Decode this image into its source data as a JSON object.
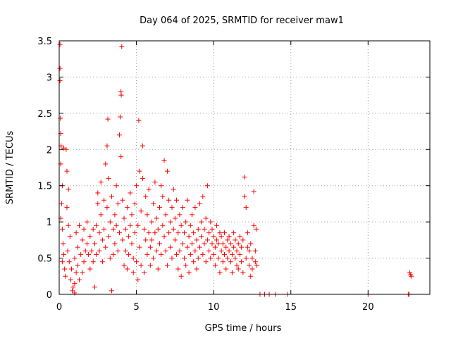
{
  "chart_data": {
    "type": "scatter",
    "title": "Day 064 of 2025, SRMTID for receiver maw1",
    "xlabel": "GPS time / hours",
    "ylabel": "SRMTID / TECUs",
    "xlim": [
      0,
      24
    ],
    "ylim": [
      0,
      3.5
    ],
    "xticks": [
      0,
      5,
      10,
      15,
      20
    ],
    "yticks": [
      0,
      0.5,
      1,
      1.5,
      2,
      2.5,
      3,
      3.5
    ],
    "xtick_labels": [
      "0",
      "5",
      "10",
      "15",
      "20"
    ],
    "ytick_labels": [
      "0",
      "0.5",
      "1",
      "1.5",
      "2",
      "2.5",
      "3",
      "3.5"
    ],
    "grid": true,
    "marker": "+",
    "color": "#ff0000",
    "series": [
      {
        "name": "SRMTID",
        "points": [
          [
            0.05,
            3.45
          ],
          [
            0.05,
            3.12
          ],
          [
            0.05,
            2.95
          ],
          [
            0.08,
            2.43
          ],
          [
            0.1,
            2.22
          ],
          [
            0.12,
            2.05
          ],
          [
            0.1,
            1.8
          ],
          [
            0.2,
            1.5
          ],
          [
            0.15,
            1.25
          ],
          [
            0.1,
            1.05
          ],
          [
            0.2,
            0.9
          ],
          [
            0.25,
            0.7
          ],
          [
            0.3,
            0.55
          ],
          [
            0.2,
            0.45
          ],
          [
            0.35,
            0.35
          ],
          [
            0.4,
            0.25
          ],
          [
            0.3,
            2.02
          ],
          [
            0.45,
            2.0
          ],
          [
            0.5,
            1.7
          ],
          [
            0.6,
            1.45
          ],
          [
            0.5,
            1.2
          ],
          [
            0.6,
            0.95
          ],
          [
            0.7,
            0.8
          ],
          [
            0.55,
            0.6
          ],
          [
            0.65,
            0.45
          ],
          [
            0.8,
            0.35
          ],
          [
            0.75,
            0.2
          ],
          [
            0.9,
            0.1
          ],
          [
            0.85,
            0.05
          ],
          [
            1.0,
            0.02
          ],
          [
            1.0,
            0.15
          ],
          [
            1.1,
            0.3
          ],
          [
            1.0,
            0.5
          ],
          [
            1.2,
            0.65
          ],
          [
            1.1,
            0.85
          ],
          [
            1.3,
            0.95
          ],
          [
            1.2,
            0.4
          ],
          [
            1.4,
            0.55
          ],
          [
            1.3,
            0.2
          ],
          [
            1.5,
            0.75
          ],
          [
            1.5,
            0.3
          ],
          [
            1.6,
            0.9
          ],
          [
            1.7,
            0.6
          ],
          [
            1.6,
            0.45
          ],
          [
            1.8,
            0.7
          ],
          [
            1.9,
            0.55
          ],
          [
            1.8,
            1.0
          ],
          [
            2.0,
            0.8
          ],
          [
            2.0,
            0.35
          ],
          [
            2.1,
            0.6
          ],
          [
            2.2,
            0.9
          ],
          [
            2.2,
            0.45
          ],
          [
            2.3,
            0.7
          ],
          [
            2.3,
            0.1
          ],
          [
            2.4,
            0.95
          ],
          [
            2.4,
            0.55
          ],
          [
            2.5,
            1.25
          ],
          [
            2.5,
            1.4
          ],
          [
            2.6,
            0.85
          ],
          [
            2.6,
            0.6
          ],
          [
            2.7,
            1.55
          ],
          [
            2.7,
            1.1
          ],
          [
            2.8,
            0.75
          ],
          [
            2.8,
            0.45
          ],
          [
            2.9,
            1.3
          ],
          [
            2.9,
            0.9
          ],
          [
            3.0,
            1.8
          ],
          [
            3.0,
            0.65
          ],
          [
            3.1,
            2.05
          ],
          [
            3.1,
            1.2
          ],
          [
            3.15,
            2.42
          ],
          [
            3.2,
            1.6
          ],
          [
            3.2,
            0.8
          ],
          [
            3.3,
            1.0
          ],
          [
            3.3,
            0.5
          ],
          [
            3.4,
            0.05
          ],
          [
            3.4,
            1.35
          ],
          [
            3.5,
            0.9
          ],
          [
            3.5,
            0.55
          ],
          [
            3.6,
            1.1
          ],
          [
            3.6,
            0.7
          ],
          [
            3.7,
            1.5
          ],
          [
            3.7,
            0.95
          ],
          [
            3.8,
            1.25
          ],
          [
            3.8,
            0.6
          ],
          [
            3.9,
            2.2
          ],
          [
            3.9,
            0.85
          ],
          [
            3.95,
            2.45
          ],
          [
            4.0,
            2.8
          ],
          [
            4.02,
            2.75
          ],
          [
            4.05,
            3.42
          ],
          [
            4.0,
            1.9
          ],
          [
            4.1,
            1.3
          ],
          [
            4.1,
            0.75
          ],
          [
            4.2,
            1.05
          ],
          [
            4.2,
            0.4
          ],
          [
            4.3,
            0.9
          ],
          [
            4.3,
            0.6
          ],
          [
            4.4,
            1.2
          ],
          [
            4.4,
            0.35
          ],
          [
            4.5,
            0.8
          ],
          [
            4.5,
            0.55
          ],
          [
            4.6,
            1.4
          ],
          [
            4.6,
            0.95
          ],
          [
            4.7,
            1.1
          ],
          [
            4.7,
            0.7
          ],
          [
            4.8,
            0.5
          ],
          [
            4.8,
            0.3
          ],
          [
            4.9,
            0.85
          ],
          [
            4.9,
            1.25
          ],
          [
            5.0,
            1.5
          ],
          [
            5.0,
            0.45
          ],
          [
            5.1,
            0.95
          ],
          [
            5.1,
            0.2
          ],
          [
            5.15,
            2.4
          ],
          [
            5.2,
            1.7
          ],
          [
            5.2,
            0.65
          ],
          [
            5.3,
            1.15
          ],
          [
            5.3,
            0.4
          ],
          [
            5.4,
            2.05
          ],
          [
            5.4,
            1.6
          ],
          [
            5.5,
            0.9
          ],
          [
            5.5,
            0.3
          ],
          [
            5.6,
            1.35
          ],
          [
            5.6,
            0.75
          ],
          [
            5.7,
            1.1
          ],
          [
            5.7,
            0.55
          ],
          [
            5.8,
            0.85
          ],
          [
            5.8,
            1.45
          ],
          [
            5.9,
            0.65
          ],
          [
            5.9,
            0.4
          ],
          [
            6.0,
            1.0
          ],
          [
            6.0,
            0.75
          ],
          [
            6.1,
            1.25
          ],
          [
            6.1,
            0.5
          ],
          [
            6.2,
            0.85
          ],
          [
            6.2,
            1.55
          ],
          [
            6.3,
            0.6
          ],
          [
            6.3,
            1.05
          ],
          [
            6.4,
            0.9
          ],
          [
            6.4,
            0.35
          ],
          [
            6.5,
            1.2
          ],
          [
            6.5,
            0.7
          ],
          [
            6.6,
            1.5
          ],
          [
            6.6,
            0.55
          ],
          [
            6.7,
            0.95
          ],
          [
            6.7,
            1.35
          ],
          [
            6.8,
            1.85
          ],
          [
            6.8,
            0.8
          ],
          [
            6.9,
            0.6
          ],
          [
            6.9,
            1.1
          ],
          [
            7.0,
            1.7
          ],
          [
            7.0,
            0.4
          ],
          [
            7.1,
            0.85
          ],
          [
            7.1,
            1.3
          ],
          [
            7.2,
            1.0
          ],
          [
            7.2,
            0.65
          ],
          [
            7.3,
            1.2
          ],
          [
            7.3,
            0.5
          ],
          [
            7.4,
            0.9
          ],
          [
            7.4,
            1.45
          ],
          [
            7.5,
            0.75
          ],
          [
            7.5,
            1.05
          ],
          [
            7.6,
            0.55
          ],
          [
            7.6,
            1.3
          ],
          [
            7.7,
            0.85
          ],
          [
            7.7,
            0.35
          ],
          [
            7.8,
            1.1
          ],
          [
            7.8,
            0.6
          ],
          [
            7.9,
            0.95
          ],
          [
            7.9,
            0.25
          ],
          [
            8.0,
            0.7
          ],
          [
            8.0,
            1.2
          ],
          [
            8.1,
            0.5
          ],
          [
            8.1,
            0.85
          ],
          [
            8.2,
            1.0
          ],
          [
            8.2,
            0.4
          ],
          [
            8.3,
            0.65
          ],
          [
            8.3,
            1.3
          ],
          [
            8.4,
            0.8
          ],
          [
            8.4,
            0.3
          ],
          [
            8.5,
            0.55
          ],
          [
            8.5,
            0.95
          ],
          [
            8.6,
            1.1
          ],
          [
            8.6,
            0.7
          ],
          [
            8.7,
            0.45
          ],
          [
            8.7,
            0.85
          ],
          [
            8.8,
            0.6
          ],
          [
            8.8,
            1.2
          ],
          [
            8.9,
            0.75
          ],
          [
            8.9,
            0.35
          ],
          [
            9.0,
            0.9
          ],
          [
            9.0,
            0.5
          ],
          [
            9.1,
            1.25
          ],
          [
            9.1,
            0.65
          ],
          [
            9.2,
            0.8
          ],
          [
            9.2,
            1.0
          ],
          [
            9.3,
            0.55
          ],
          [
            9.3,
            1.35
          ],
          [
            9.4,
            0.7
          ],
          [
            9.4,
            0.9
          ],
          [
            9.5,
            1.05
          ],
          [
            9.5,
            0.45
          ],
          [
            9.6,
            0.75
          ],
          [
            9.6,
            1.5
          ],
          [
            9.7,
            0.6
          ],
          [
            9.7,
            0.85
          ],
          [
            9.8,
            1.0
          ],
          [
            9.8,
            0.5
          ],
          [
            9.9,
            0.7
          ],
          [
            9.9,
            0.9
          ],
          [
            10.0,
            0.55
          ],
          [
            10.0,
            0.8
          ],
          [
            10.1,
            0.65
          ],
          [
            10.1,
            0.4
          ],
          [
            10.2,
            0.75
          ],
          [
            10.2,
            0.95
          ],
          [
            10.3,
            0.5
          ],
          [
            10.3,
            0.7
          ],
          [
            10.4,
            0.85
          ],
          [
            10.4,
            0.3
          ],
          [
            10.5,
            0.6
          ],
          [
            10.5,
            0.8
          ],
          [
            10.6,
            0.45
          ],
          [
            10.6,
            0.7
          ],
          [
            10.7,
            0.55
          ],
          [
            10.7,
            0.85
          ],
          [
            10.8,
            0.65
          ],
          [
            10.8,
            0.35
          ],
          [
            10.9,
            0.75
          ],
          [
            10.9,
            0.5
          ],
          [
            11.0,
            0.6
          ],
          [
            11.0,
            0.8
          ],
          [
            11.1,
            0.45
          ],
          [
            11.1,
            0.7
          ],
          [
            11.2,
            0.55
          ],
          [
            11.2,
            0.3
          ],
          [
            11.3,
            0.65
          ],
          [
            11.3,
            0.85
          ],
          [
            11.4,
            0.5
          ],
          [
            11.4,
            0.75
          ],
          [
            11.5,
            0.4
          ],
          [
            11.5,
            0.6
          ],
          [
            11.6,
            0.7
          ],
          [
            11.6,
            0.35
          ],
          [
            11.7,
            0.55
          ],
          [
            11.7,
            0.8
          ],
          [
            11.8,
            0.45
          ],
          [
            11.8,
            0.65
          ],
          [
            11.9,
            0.3
          ],
          [
            11.9,
            0.75
          ],
          [
            12.0,
            1.62
          ],
          [
            12.0,
            1.35
          ],
          [
            12.1,
            1.2
          ],
          [
            12.1,
            0.5
          ],
          [
            12.2,
            0.65
          ],
          [
            12.2,
            0.85
          ],
          [
            12.3,
            0.4
          ],
          [
            12.3,
            0.6
          ],
          [
            12.4,
            0.25
          ],
          [
            12.4,
            0.7
          ],
          [
            12.5,
            0.5
          ],
          [
            12.5,
            0.35
          ],
          [
            12.6,
            1.42
          ],
          [
            12.6,
            0.95
          ],
          [
            12.7,
            0.6
          ],
          [
            12.7,
            0.45
          ],
          [
            12.75,
            0.9
          ],
          [
            12.8,
            0.4
          ],
          [
            13.0,
            0.0
          ],
          [
            13.3,
            0.0
          ],
          [
            13.6,
            0.0
          ],
          [
            14.0,
            0.0
          ],
          [
            14.8,
            0.0
          ],
          [
            20.0,
            0.0
          ],
          [
            22.6,
            0.0
          ],
          [
            22.65,
            0.0
          ],
          [
            22.7,
            0.3
          ],
          [
            22.75,
            0.27
          ],
          [
            22.8,
            0.25
          ]
        ]
      }
    ]
  }
}
